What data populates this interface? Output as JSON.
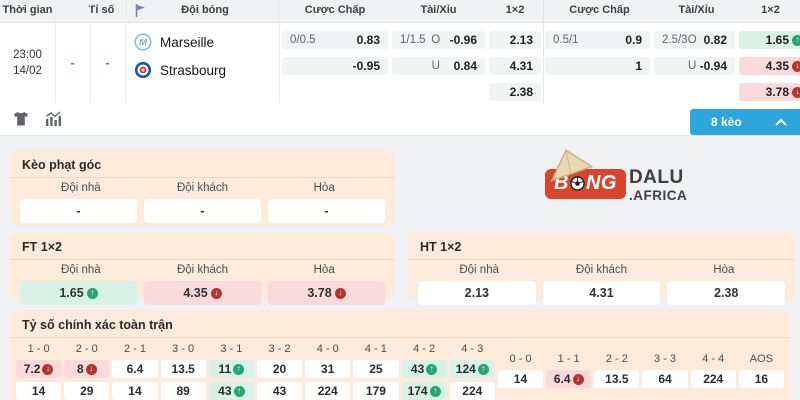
{
  "header": {
    "time_label": "Thời gian",
    "score_label": "Tỉ số",
    "team_label": "Đội bóng",
    "handicap_label": "Cược Chấp",
    "over_under_label": "Tài/Xỉu",
    "x12_label": "1×2"
  },
  "match": {
    "time": "23:00",
    "date": "14/02",
    "home_score": "-",
    "away_score": "-",
    "home_team": "Marseille",
    "away_team": "Strasbourg"
  },
  "odds": {
    "left": {
      "handicap": [
        {
          "line": "0/0.5",
          "odds": "0.83"
        },
        {
          "line": "",
          "odds": "-0.95"
        }
      ],
      "over_under": [
        {
          "line": "1/1.5",
          "side": "O",
          "odds": "-0.96"
        },
        {
          "line": "",
          "side": "U",
          "odds": "0.84"
        }
      ],
      "one_x_two": [
        "2.13",
        "4.31",
        "2.38"
      ]
    },
    "right": {
      "handicap": [
        {
          "line": "0.5/1",
          "odds": "0.9"
        },
        {
          "line": "",
          "odds": "1"
        }
      ],
      "over_under": [
        {
          "line": "2.5/3",
          "side": "O",
          "odds": "0.82"
        },
        {
          "line": "",
          "side": "U",
          "odds": "-0.94"
        }
      ],
      "one_x_two": [
        {
          "v": "1.65",
          "trend": "up",
          "tone": "green"
        },
        {
          "v": "4.35",
          "trend": "down",
          "tone": "red"
        },
        {
          "v": "3.78",
          "trend": "down",
          "tone": "red"
        }
      ]
    }
  },
  "toolbar": {
    "market_count_button": "8 kèo"
  },
  "brand": {
    "bong_b": "B",
    "bong_ng": "NG",
    "dalu": "DALU",
    "africa": ".AFRICA"
  },
  "corner": {
    "title": "Kèo phạt góc",
    "columns": [
      "Đội nhà",
      "Đội khách",
      "Hòa"
    ],
    "values": [
      "-",
      "-",
      "-"
    ]
  },
  "ft": {
    "title": "FT 1×2",
    "columns": [
      "Đội nhà",
      "Đội khách",
      "Hòa"
    ],
    "values": [
      {
        "v": "1.65",
        "trend": "up",
        "tone": "green"
      },
      {
        "v": "4.35",
        "trend": "down",
        "tone": "red"
      },
      {
        "v": "3.78",
        "trend": "down",
        "tone": "red"
      }
    ]
  },
  "ht": {
    "title": "HT 1×2",
    "columns": [
      "Đội nhà",
      "Đội khách",
      "Hòa"
    ],
    "values": [
      "2.13",
      "4.31",
      "2.38"
    ]
  },
  "correct_score": {
    "title": "Tỷ số chính xác toàn trận",
    "columns": [
      {
        "label": "1 - 0",
        "cells": [
          {
            "v": "7.2",
            "trend": "down",
            "tone": "red"
          },
          {
            "v": "14"
          }
        ]
      },
      {
        "label": "2 - 0",
        "cells": [
          {
            "v": "8",
            "trend": "down",
            "tone": "red"
          },
          {
            "v": "29"
          }
        ]
      },
      {
        "label": "2 - 1",
        "cells": [
          {
            "v": "6.4"
          },
          {
            "v": "14"
          }
        ]
      },
      {
        "label": "3 - 0",
        "cells": [
          {
            "v": "13.5"
          },
          {
            "v": "89"
          }
        ]
      },
      {
        "label": "3 - 1",
        "cells": [
          {
            "v": "11",
            "trend": "up",
            "tone": "green"
          },
          {
            "v": "43",
            "trend": "up",
            "tone": "green"
          }
        ]
      },
      {
        "label": "3 - 2",
        "cells": [
          {
            "v": "20"
          },
          {
            "v": "43"
          }
        ]
      },
      {
        "label": "4 - 0",
        "cells": [
          {
            "v": "31"
          },
          {
            "v": "224"
          }
        ]
      },
      {
        "label": "4 - 1",
        "cells": [
          {
            "v": "25"
          },
          {
            "v": "179"
          }
        ]
      },
      {
        "label": "4 - 2",
        "cells": [
          {
            "v": "43",
            "trend": "up",
            "tone": "green"
          },
          {
            "v": "174",
            "trend": "up",
            "tone": "green"
          }
        ]
      },
      {
        "label": "4 - 3",
        "cells": [
          {
            "v": "124",
            "trend": "up",
            "tone": "green"
          },
          {
            "v": "224"
          }
        ]
      },
      {
        "label": "0 - 0",
        "cells": [
          {
            "v": "14"
          }
        ]
      },
      {
        "label": "1 - 1",
        "cells": [
          {
            "v": "6.4",
            "trend": "down",
            "tone": "red"
          }
        ]
      },
      {
        "label": "2 - 2",
        "cells": [
          {
            "v": "13.5"
          }
        ]
      },
      {
        "label": "3 - 3",
        "cells": [
          {
            "v": "64"
          }
        ]
      },
      {
        "label": "4 - 4",
        "cells": [
          {
            "v": "224"
          }
        ]
      },
      {
        "label": "AOS",
        "cells": [
          {
            "v": "16"
          }
        ]
      }
    ]
  },
  "colors": {
    "accent_blue": "#2ea6dc",
    "card_peach": "#fcebdb",
    "odds_up_bg": "#d8f3e6",
    "odds_down_bg": "#f9dada",
    "trend_up": "#29a56f",
    "trend_down": "#b23530",
    "score_dash": "#e24c4c",
    "brand_red": "#d9452c"
  }
}
